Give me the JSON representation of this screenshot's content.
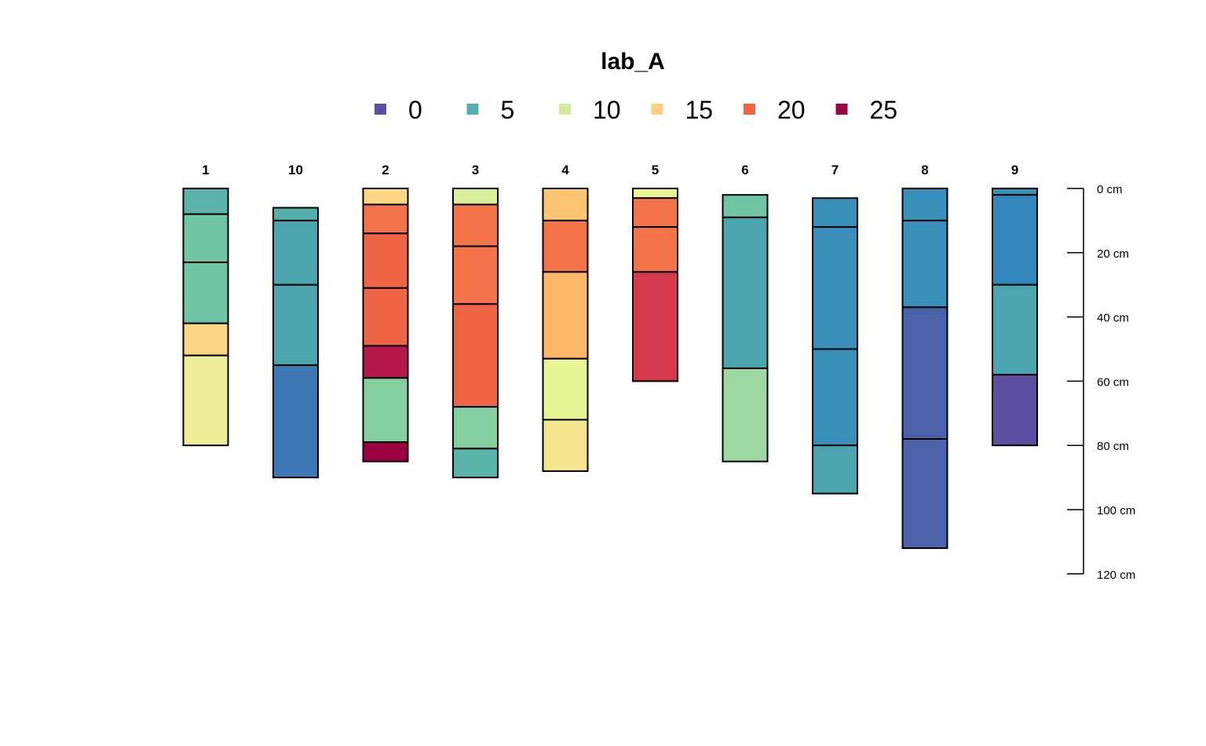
{
  "chart_data": {
    "type": "soil-profile-sketch",
    "title": "lab_A",
    "legend": [
      {
        "label": "0",
        "color": "#5E4FA2"
      },
      {
        "label": "5",
        "color": "#54AEAD"
      },
      {
        "label": "10",
        "color": "#D1EC9C"
      },
      {
        "label": "15",
        "color": "#FCCF81"
      },
      {
        "label": "20",
        "color": "#EE6445"
      },
      {
        "label": "25",
        "color": "#9E0142"
      }
    ],
    "depth_axis": {
      "ticks": [
        0,
        20,
        40,
        60,
        80,
        100,
        120
      ],
      "tick_labels": [
        "0 cm",
        "20 cm",
        "40 cm",
        "60 cm",
        "80 cm",
        "100 cm",
        "120 cm"
      ],
      "range": [
        0,
        120
      ]
    },
    "profiles": [
      {
        "id": "1",
        "horizons": [
          {
            "top": 0,
            "bottom": 8,
            "color": "#5AB4AC"
          },
          {
            "top": 8,
            "bottom": 23,
            "color": "#6FC5A4"
          },
          {
            "top": 23,
            "bottom": 42,
            "color": "#6FC5A4"
          },
          {
            "top": 42,
            "bottom": 52,
            "color": "#FDD683"
          },
          {
            "top": 52,
            "bottom": 80,
            "color": "#EEEE99"
          }
        ]
      },
      {
        "id": "10",
        "horizons": [
          {
            "top": 6,
            "bottom": 10,
            "color": "#54AEAD"
          },
          {
            "top": 10,
            "bottom": 30,
            "color": "#4BA5B0"
          },
          {
            "top": 30,
            "bottom": 55,
            "color": "#4BA5B0"
          },
          {
            "top": 55,
            "bottom": 90,
            "color": "#3D78B6"
          }
        ]
      },
      {
        "id": "2",
        "horizons": [
          {
            "top": 0,
            "bottom": 5,
            "color": "#FDD683"
          },
          {
            "top": 5,
            "bottom": 14,
            "color": "#F4744A"
          },
          {
            "top": 14,
            "bottom": 31,
            "color": "#EE6445"
          },
          {
            "top": 31,
            "bottom": 49,
            "color": "#EE6445"
          },
          {
            "top": 49,
            "bottom": 59,
            "color": "#B7174B"
          },
          {
            "top": 59,
            "bottom": 79,
            "color": "#84CF9F"
          },
          {
            "top": 79,
            "bottom": 85,
            "color": "#9E0142"
          }
        ]
      },
      {
        "id": "3",
        "horizons": [
          {
            "top": 0,
            "bottom": 5,
            "color": "#D9EF9B"
          },
          {
            "top": 5,
            "bottom": 18,
            "color": "#F4744A"
          },
          {
            "top": 18,
            "bottom": 36,
            "color": "#F4744A"
          },
          {
            "top": 36,
            "bottom": 68,
            "color": "#EE6445"
          },
          {
            "top": 68,
            "bottom": 81,
            "color": "#84CF9F"
          },
          {
            "top": 81,
            "bottom": 90,
            "color": "#5AB4AC"
          }
        ]
      },
      {
        "id": "4",
        "horizons": [
          {
            "top": 0,
            "bottom": 10,
            "color": "#FDC571"
          },
          {
            "top": 10,
            "bottom": 26,
            "color": "#F4744A"
          },
          {
            "top": 26,
            "bottom": 53,
            "color": "#FDB867"
          },
          {
            "top": 53,
            "bottom": 72,
            "color": "#E7F594"
          },
          {
            "top": 72,
            "bottom": 88,
            "color": "#F6E68D"
          }
        ]
      },
      {
        "id": "5",
        "horizons": [
          {
            "top": 0,
            "bottom": 3,
            "color": "#E7F594"
          },
          {
            "top": 3,
            "bottom": 12,
            "color": "#F4744A"
          },
          {
            "top": 12,
            "bottom": 26,
            "color": "#F4744A"
          },
          {
            "top": 26,
            "bottom": 60,
            "color": "#D5394D"
          }
        ]
      },
      {
        "id": "6",
        "horizons": [
          {
            "top": 2,
            "bottom": 9,
            "color": "#6FC5A4"
          },
          {
            "top": 9,
            "bottom": 56,
            "color": "#4BA5B0"
          },
          {
            "top": 56,
            "bottom": 85,
            "color": "#9DD7A1"
          }
        ]
      },
      {
        "id": "7",
        "horizons": [
          {
            "top": 3,
            "bottom": 12,
            "color": "#3990BA"
          },
          {
            "top": 12,
            "bottom": 50,
            "color": "#3990BA"
          },
          {
            "top": 50,
            "bottom": 80,
            "color": "#3990BA"
          },
          {
            "top": 80,
            "bottom": 95,
            "color": "#4BA5B0"
          }
        ]
      },
      {
        "id": "8",
        "horizons": [
          {
            "top": 0,
            "bottom": 10,
            "color": "#3990BA"
          },
          {
            "top": 10,
            "bottom": 37,
            "color": "#3990BA"
          },
          {
            "top": 37,
            "bottom": 78,
            "color": "#4A62AB"
          },
          {
            "top": 78,
            "bottom": 112,
            "color": "#4A62AB"
          }
        ]
      },
      {
        "id": "9",
        "horizons": [
          {
            "top": 0,
            "bottom": 2,
            "color": "#3990BA"
          },
          {
            "top": 2,
            "bottom": 30,
            "color": "#3288BD"
          },
          {
            "top": 30,
            "bottom": 58,
            "color": "#4BA5B0"
          },
          {
            "top": 58,
            "bottom": 80,
            "color": "#5E4FA2"
          }
        ]
      }
    ]
  }
}
